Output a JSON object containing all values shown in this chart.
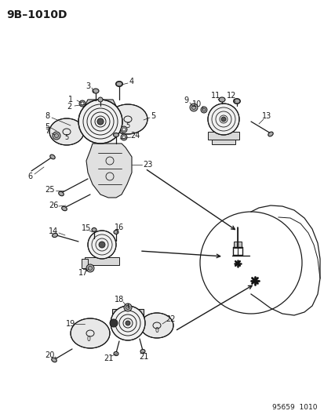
{
  "title": "9B–1010D",
  "footer": "95659  1010",
  "bg_color": "#ffffff",
  "line_color": "#1a1a1a",
  "title_fontsize": 10,
  "footer_fontsize": 6.5,
  "label_fontsize": 7
}
